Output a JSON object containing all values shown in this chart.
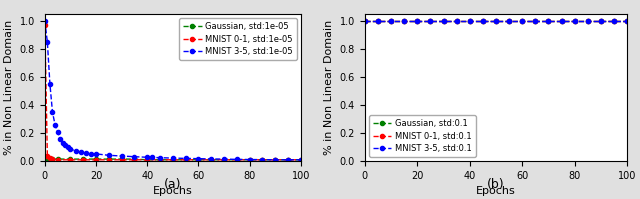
{
  "fig_width": 6.4,
  "fig_height": 1.99,
  "dpi": 100,
  "subplot_a": {
    "title": "(a)",
    "xlabel": "Epochs",
    "ylabel": "% in Non Linear Domain",
    "xlim": [
      0,
      100
    ],
    "ylim": [
      0.0,
      1.05
    ],
    "yticks": [
      0.0,
      0.2,
      0.4,
      0.6,
      0.8,
      1.0
    ],
    "xticks": [
      0,
      20,
      40,
      60,
      80,
      100
    ],
    "gaussian_color": "#008000",
    "mnist01_color": "#ff0000",
    "mnist35_color": "#0000ff",
    "legend_labels": [
      "Gaussian, std:1e-05",
      "MNIST 0-1, std:1e-05",
      "MNIST 3-5, std:1e-05"
    ],
    "gaussian_x": [
      0,
      1,
      2,
      3,
      5,
      10,
      15,
      20,
      25,
      30,
      35,
      40,
      45,
      50,
      55,
      60,
      65,
      70,
      75,
      80,
      85,
      90,
      95,
      100
    ],
    "gaussian_y": [
      0.01,
      0.015,
      0.015,
      0.015,
      0.015,
      0.015,
      0.015,
      0.015,
      0.015,
      0.015,
      0.015,
      0.01,
      0.01,
      0.01,
      0.01,
      0.01,
      0.01,
      0.01,
      0.01,
      0.01,
      0.01,
      0.01,
      0.01,
      0.01
    ],
    "mnist01_x": [
      0,
      1,
      2,
      3,
      5,
      10,
      15,
      20,
      25,
      30,
      35,
      40,
      45,
      50,
      55,
      60,
      65,
      70,
      75,
      80,
      85,
      90,
      95,
      100
    ],
    "mnist01_y": [
      0.97,
      0.04,
      0.02,
      0.015,
      0.01,
      0.01,
      0.01,
      0.01,
      0.01,
      0.01,
      0.01,
      0.01,
      0.01,
      0.01,
      0.01,
      0.01,
      0.01,
      0.01,
      0.01,
      0.01,
      0.01,
      0.01,
      0.01,
      0.01
    ],
    "mnist35_x": [
      0,
      1,
      2,
      3,
      4,
      5,
      6,
      7,
      8,
      9,
      10,
      12,
      14,
      16,
      18,
      20,
      25,
      30,
      35,
      40,
      42,
      45,
      50,
      55,
      60,
      65,
      70,
      75,
      80,
      85,
      90,
      95,
      100
    ],
    "mnist35_y": [
      1.0,
      0.85,
      0.55,
      0.35,
      0.26,
      0.21,
      0.16,
      0.13,
      0.115,
      0.098,
      0.088,
      0.072,
      0.062,
      0.057,
      0.052,
      0.052,
      0.042,
      0.037,
      0.032,
      0.028,
      0.027,
      0.025,
      0.022,
      0.02,
      0.018,
      0.016,
      0.015,
      0.013,
      0.012,
      0.011,
      0.01,
      0.01,
      0.01
    ]
  },
  "subplot_b": {
    "title": "(b)",
    "xlabel": "Epochs",
    "ylabel": "% in Non Linear Domain",
    "xlim": [
      0,
      100
    ],
    "ylim": [
      0.0,
      1.05
    ],
    "yticks": [
      0.0,
      0.2,
      0.4,
      0.6,
      0.8,
      1.0
    ],
    "xticks": [
      0,
      20,
      40,
      60,
      80,
      100
    ],
    "gaussian_color": "#008000",
    "mnist01_color": "#ff0000",
    "mnist35_color": "#0000ff",
    "legend_labels": [
      "Gaussian, std:0.1",
      "MNIST 0-1, std:0.1",
      "MNIST 3-5, std:0.1"
    ],
    "all_x": [
      0,
      5,
      10,
      15,
      20,
      25,
      30,
      35,
      40,
      45,
      50,
      55,
      60,
      65,
      70,
      75,
      80,
      85,
      90,
      95,
      100
    ],
    "gaussian_y": [
      1.0,
      1.0,
      1.0,
      1.0,
      1.0,
      1.0,
      1.0,
      1.0,
      1.0,
      1.0,
      1.0,
      1.0,
      1.0,
      1.0,
      1.0,
      1.0,
      1.0,
      1.0,
      1.0,
      1.0,
      1.0
    ],
    "mnist01_y": [
      1.0,
      1.0,
      1.0,
      1.0,
      1.0,
      1.0,
      1.0,
      1.0,
      1.0,
      1.0,
      1.0,
      1.0,
      1.0,
      1.0,
      1.0,
      1.0,
      1.0,
      1.0,
      1.0,
      1.0,
      1.0
    ],
    "mnist35_y": [
      1.0,
      1.0,
      1.0,
      1.0,
      1.0,
      1.0,
      1.0,
      1.0,
      1.0,
      1.0,
      1.0,
      1.0,
      1.0,
      1.0,
      1.0,
      1.0,
      1.0,
      1.0,
      1.0,
      1.0,
      1.0
    ]
  },
  "outer_bg": "#e0e0e0",
  "inner_bg": "#ffffff"
}
